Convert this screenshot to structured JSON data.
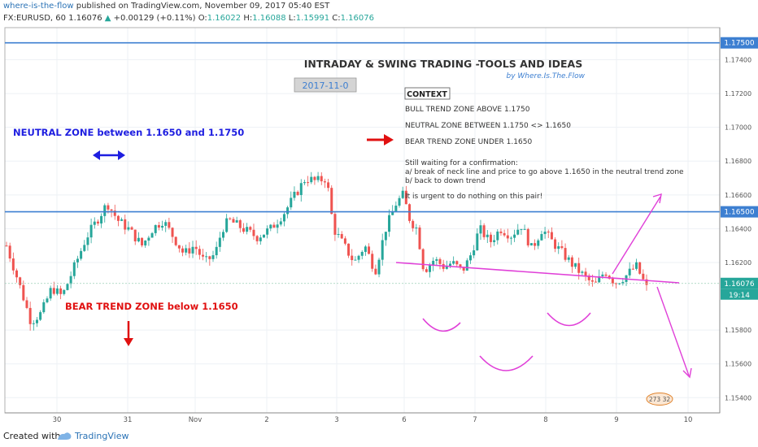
{
  "header": {
    "user": "where-is-the-flow",
    "published": "published on TradingView.com, November 09, 2017 05:40 EST",
    "symbol": "FX:EURUSD, 60",
    "last": "1.16076",
    "change_arrow": "▲",
    "change": "+0.00129 (+0.11%)",
    "o_label": "O:",
    "o": "1.16022",
    "h_label": "H:",
    "h": "1.16088",
    "l_label": "L:",
    "l": "1.15991",
    "c_label": "C:",
    "c": "1.16076"
  },
  "footer": {
    "created": "Created with",
    "brand": "TradingView"
  },
  "colors": {
    "up": "#26a69a",
    "down": "#ef5350",
    "hline": "#3d7fd1",
    "magenta": "#e040d8",
    "red": "#e01010",
    "blue_text": "#1e1ee0"
  },
  "chart_data": {
    "type": "candlestick",
    "title": "INTRADAY & SWING TRADING -TOOLS AND IDEAS",
    "subtitle": "by Where.Is.The.Flow",
    "date_box": "2017-11-0",
    "y_ticks": [
      "1.17400",
      "1.17200",
      "1.17000",
      "1.16800",
      "1.16600",
      "1.16400",
      "1.16200",
      "1.15800",
      "1.15600",
      "1.15400"
    ],
    "ylim": [
      1.1531,
      1.1759
    ],
    "x_ticks": [
      "30",
      "31",
      "Nov",
      "2",
      "3",
      "6",
      "7",
      "8",
      "9",
      "10"
    ],
    "price_labels": {
      "h1": "1.17500",
      "h2": "1.16500",
      "current": "1.16076",
      "countdown": "19:14"
    },
    "horizontal_lines": [
      1.175,
      1.165
    ],
    "current_price": 1.16076,
    "annotations": {
      "neutral": "NEUTRAL ZONE between 1.1650 and 1.1750",
      "bear": "BEAR TREND ZONE below 1.1650",
      "context_title": "CONTEXT",
      "ctx1": "BULL TREND ZONE ABOVE 1.1750",
      "ctx2": "NEUTRAL ZONE BETWEEN 1.1750 <> 1.1650",
      "ctx3": "BEAR TREND ZONE UNDER 1.1650",
      "wait1": "Still waiting for a confirmation:",
      "wait2": "a/ break of neck line and price to go above 1.1650 in the neutral trend zone",
      "wait3": "b/ back to down trend",
      "urgent": "It is urgent to do nothing on this pair!",
      "badge": "273 32"
    },
    "path": [
      [
        0,
        1.163
      ],
      [
        8,
        1.1605
      ],
      [
        14,
        1.1585
      ],
      [
        20,
        1.159
      ],
      [
        26,
        1.1605
      ],
      [
        32,
        1.16
      ],
      [
        40,
        1.162
      ],
      [
        46,
        1.1635
      ],
      [
        52,
        1.1645
      ],
      [
        58,
        1.1655
      ],
      [
        64,
        1.1645
      ],
      [
        70,
        1.164
      ],
      [
        78,
        1.163
      ],
      [
        84,
        1.164
      ],
      [
        90,
        1.1645
      ],
      [
        96,
        1.1635
      ],
      [
        102,
        1.1625
      ],
      [
        108,
        1.163
      ],
      [
        114,
        1.162
      ],
      [
        120,
        1.1625
      ],
      [
        124,
        1.164
      ],
      [
        128,
        1.1645
      ],
      [
        136,
        1.164
      ],
      [
        144,
        1.1635
      ],
      [
        152,
        1.164
      ],
      [
        160,
        1.165
      ],
      [
        166,
        1.166
      ],
      [
        172,
        1.167
      ],
      [
        178,
        1.1668
      ],
      [
        184,
        1.167
      ],
      [
        188,
        1.164
      ],
      [
        194,
        1.163
      ],
      [
        200,
        1.162
      ],
      [
        206,
        1.163
      ],
      [
        212,
        1.1615
      ],
      [
        218,
        1.164
      ],
      [
        224,
        1.1655
      ],
      [
        228,
        1.166
      ],
      [
        232,
        1.1645
      ],
      [
        236,
        1.164
      ],
      [
        240,
        1.1615
      ],
      [
        246,
        1.1622
      ],
      [
        252,
        1.1617
      ],
      [
        256,
        1.162
      ],
      [
        262,
        1.1615
      ],
      [
        266,
        1.1622
      ],
      [
        272,
        1.164
      ],
      [
        278,
        1.1632
      ],
      [
        284,
        1.164
      ],
      [
        290,
        1.1636
      ],
      [
        296,
        1.1642
      ],
      [
        302,
        1.1628
      ],
      [
        308,
        1.164
      ],
      [
        314,
        1.1632
      ],
      [
        320,
        1.1625
      ],
      [
        326,
        1.1618
      ],
      [
        332,
        1.1612
      ],
      [
        338,
        1.1606
      ],
      [
        344,
        1.1615
      ],
      [
        350,
        1.1608
      ],
      [
        356,
        1.1612
      ],
      [
        362,
        1.1618
      ],
      [
        368,
        1.1605
      ]
    ],
    "markers": [
      "neutral-arrow",
      "bear-arrow",
      "red-right-arrow",
      "neckline",
      "up-arrow",
      "down-arrow",
      "left-shoulder",
      "head",
      "right-shoulder"
    ]
  }
}
